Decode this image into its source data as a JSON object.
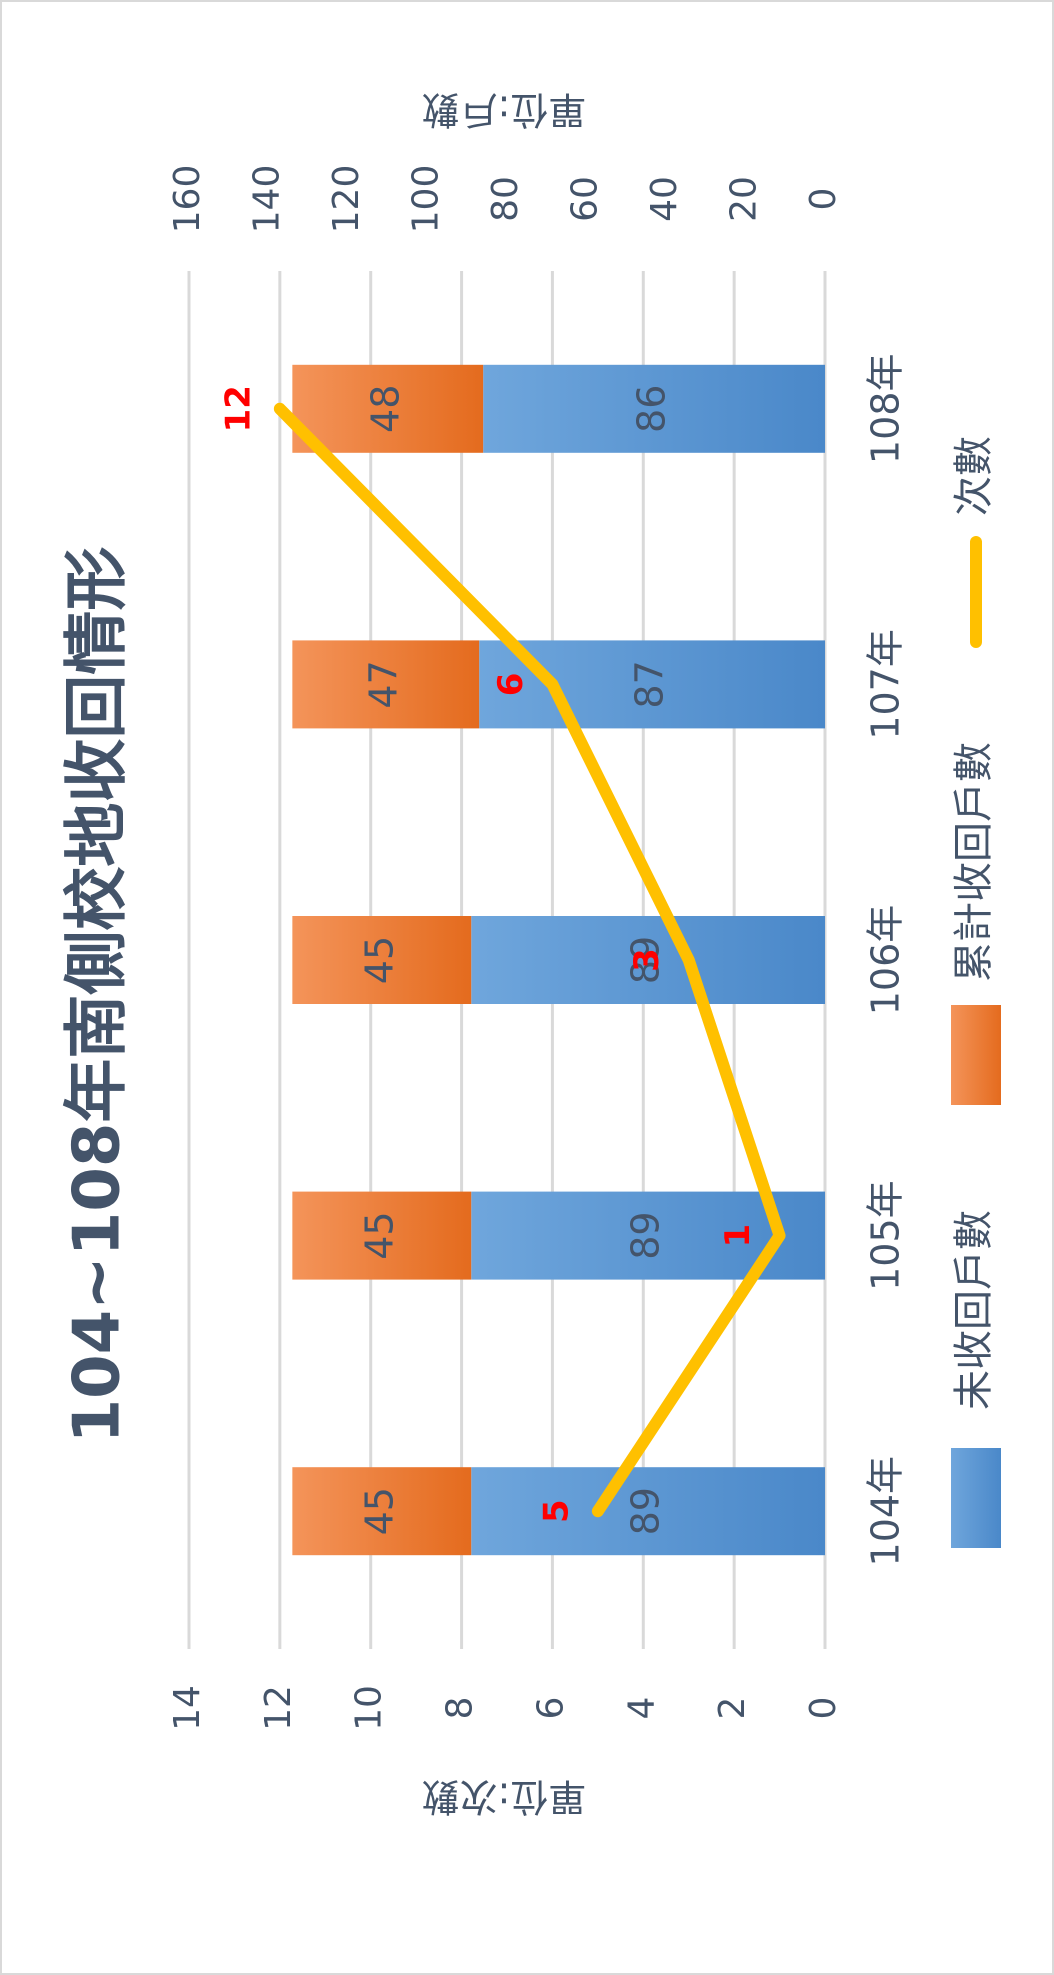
{
  "chart_data": {
    "type": "bar_line",
    "title": "104~108年南側校地收回情形",
    "categories": [
      "104年",
      "105年",
      "106年",
      "107年",
      "108年"
    ],
    "series": [
      {
        "name": "未收回戶數",
        "type": "bar",
        "axis": "y2",
        "color": "#5b9bd5",
        "values": [
          89,
          89,
          89,
          87,
          86
        ]
      },
      {
        "name": "累計收回戶數",
        "type": "bar",
        "axis": "y2",
        "color": "#ed7d31",
        "values": [
          45,
          45,
          45,
          47,
          48
        ]
      },
      {
        "name": "次數",
        "type": "line",
        "axis": "y",
        "color": "#ffc000",
        "values": [
          5,
          1,
          3,
          6,
          12
        ]
      }
    ],
    "ylabel": "單位:次數",
    "y2label": "單位:戶數",
    "ylim": [
      0,
      14
    ],
    "yticks": [
      0,
      2,
      4,
      6,
      8,
      10,
      12,
      14
    ],
    "y2lim": [
      0,
      160
    ],
    "y2ticks": [
      0,
      20,
      40,
      60,
      80,
      100,
      120,
      140,
      160
    ],
    "grid": true,
    "stacked": true,
    "legend": "bottom",
    "rotation": -90
  }
}
